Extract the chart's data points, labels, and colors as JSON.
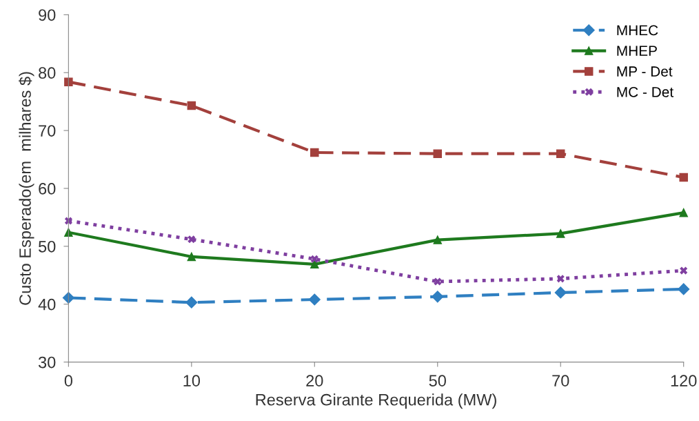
{
  "chart_data": {
    "type": "line",
    "xlabel": "Reserva Girante Requerida (MW)",
    "ylabel": "Custo Esperado(em  milhares $)",
    "categories": [
      "0",
      "10",
      "20",
      "50",
      "70",
      "120"
    ],
    "series": [
      {
        "name": "MHEC",
        "color": "#2f7fc1",
        "marker": "diamond",
        "line_style": "dashed",
        "values": [
          41.1,
          40.3,
          40.8,
          41.3,
          42.0,
          42.6
        ]
      },
      {
        "name": "MHEP",
        "color": "#1e7a1e",
        "marker": "triangle",
        "line_style": "solid",
        "values": [
          52.4,
          48.2,
          46.9,
          51.1,
          52.2,
          55.8
        ]
      },
      {
        "name": "MP - Det",
        "color": "#a3403c",
        "marker": "square",
        "line_style": "dashed",
        "values": [
          78.4,
          74.3,
          66.2,
          66.0,
          66.0,
          61.9
        ]
      },
      {
        "name": "MC - Det",
        "color": "#7f3fa0",
        "marker": "cross",
        "line_style": "dotted",
        "values": [
          54.4,
          51.2,
          47.8,
          43.9,
          44.4,
          45.8
        ]
      }
    ],
    "ylim": [
      30,
      90
    ],
    "yticks": [
      30,
      40,
      50,
      60,
      70,
      80,
      90
    ],
    "grid": false,
    "legend": "top right"
  }
}
